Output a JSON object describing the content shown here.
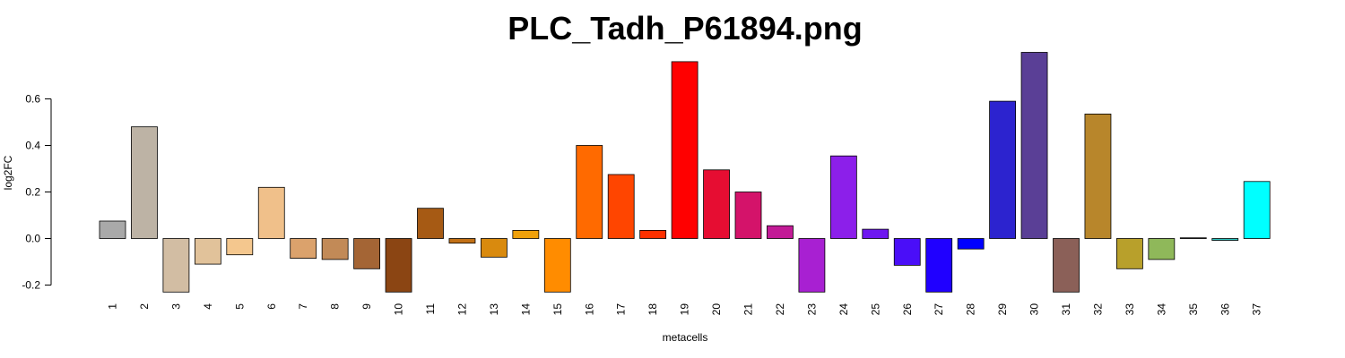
{
  "chart_data": {
    "type": "bar",
    "title": "PLC_Tadh_P61894.png",
    "xlabel": "metacells",
    "ylabel": "log2FC",
    "ylim": [
      -0.23,
      0.8
    ],
    "yticks": [
      "-0.2",
      "0.0",
      "0.2",
      "0.4",
      "0.6"
    ],
    "yticks_values": [
      -0.2,
      0.0,
      0.2,
      0.4,
      0.6
    ],
    "grid": false,
    "legend": "none",
    "categories": [
      "1",
      "2",
      "3",
      "4",
      "5",
      "6",
      "7",
      "8",
      "9",
      "10",
      "11",
      "12",
      "13",
      "14",
      "15",
      "16",
      "17",
      "18",
      "19",
      "20",
      "21",
      "22",
      "23",
      "24",
      "25",
      "26",
      "27",
      "28",
      "29",
      "30",
      "31",
      "32",
      "33",
      "34",
      "35",
      "36",
      "37"
    ],
    "values": [
      0.075,
      0.48,
      -0.23,
      -0.11,
      -0.07,
      0.22,
      -0.085,
      -0.09,
      -0.13,
      -0.23,
      0.13,
      -0.02,
      -0.08,
      0.035,
      -0.23,
      0.4,
      0.275,
      0.035,
      0.76,
      0.295,
      0.2,
      0.055,
      -0.23,
      0.355,
      0.04,
      -0.115,
      -0.23,
      -0.045,
      0.59,
      0.8,
      -0.23,
      0.535,
      -0.13,
      -0.09,
      0.003,
      -0.008,
      0.245
    ],
    "colors": [
      "#a9a9a9",
      "#bdb3a5",
      "#d2bda3",
      "#e1c29a",
      "#f4c78e",
      "#f0c08a",
      "#dba26c",
      "#c28a57",
      "#a46535",
      "#8b4513",
      "#a65a14",
      "#c27015",
      "#d98a0e",
      "#f0a10a",
      "#ff8c00",
      "#ff6a00",
      "#ff4500",
      "#ff3000",
      "#ff0000",
      "#e60d32",
      "#d4136a",
      "#c21a96",
      "#a820d2",
      "#8c1fea",
      "#6e17f0",
      "#4a0ef8",
      "#2000ff",
      "#0000ff",
      "#2c23cf",
      "#5a3f96",
      "#8b6058",
      "#b8862b",
      "#b8a02b",
      "#8fb85a",
      "#55c091",
      "#2fc6c0",
      "#00ffff"
    ]
  }
}
